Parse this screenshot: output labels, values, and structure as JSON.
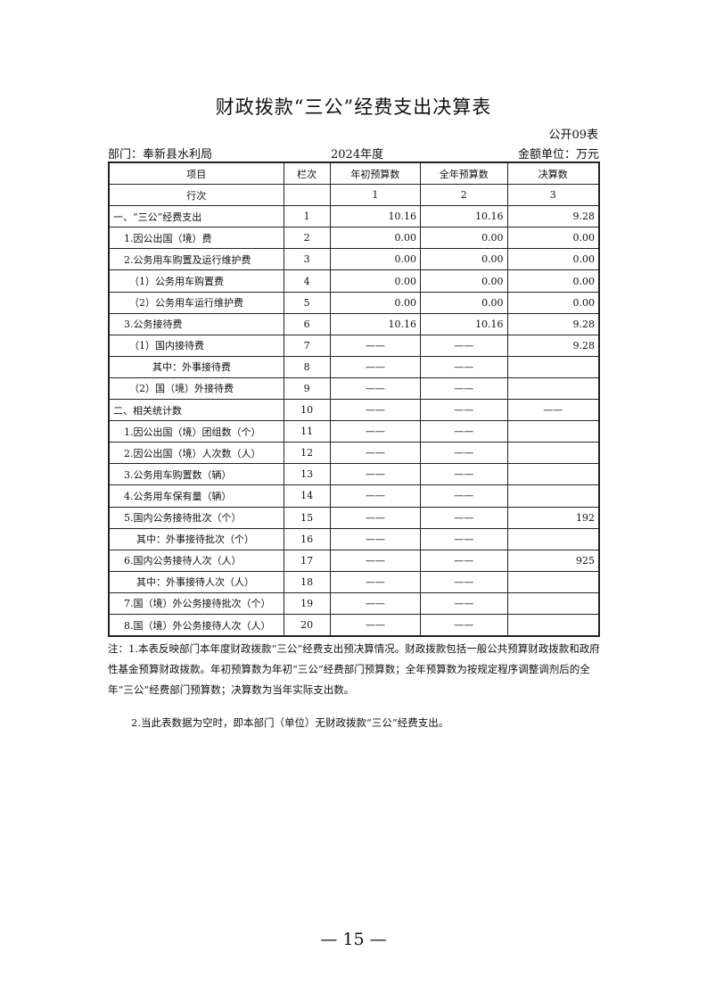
{
  "title": "财政拨款“三公”经费支出决算表",
  "table_no": "公开09表",
  "department": "部门：奉新县水利局",
  "year": "2024年度",
  "unit": "金额单位：万元",
  "headers": [
    "项目",
    "栏次",
    "年初预算数",
    "全年预算数",
    "决算数"
  ],
  "index_row": [
    "行次",
    "",
    "1",
    "2",
    "3"
  ],
  "rows": [
    [
      "一、“三公”经费支出",
      "1",
      "10.16",
      "10.16",
      "9.28"
    ],
    [
      "1.因公出国（境）费",
      "2",
      "0.00",
      "0.00",
      "0.00"
    ],
    [
      "2.公务用车购置及运行维护费",
      "3",
      "0.00",
      "0.00",
      "0.00"
    ],
    [
      "（1）公务用车购置费",
      "4",
      "0.00",
      "0.00",
      "0.00"
    ],
    [
      "（2）公务用车运行维护费",
      "5",
      "0.00",
      "0.00",
      "0.00"
    ],
    [
      "3.公务接待费",
      "6",
      "10.16",
      "10.16",
      "9.28"
    ],
    [
      "（1）国内接待费",
      "7",
      "——",
      "——",
      "9.28"
    ],
    [
      "其中：外事接待费",
      "8",
      "——",
      "——",
      ""
    ],
    [
      "（2）国（境）外接待费",
      "9",
      "——",
      "——",
      ""
    ],
    [
      "二、相关统计数",
      "10",
      "——",
      "——",
      "——"
    ],
    [
      "1.因公出国（境）团组数（个）",
      "11",
      "——",
      "——",
      ""
    ],
    [
      "2.因公出国（境）人次数（人）",
      "12",
      "——",
      "——",
      ""
    ],
    [
      "3.公务用车购置数（辆）",
      "13",
      "——",
      "——",
      ""
    ],
    [
      "4.公务用车保有量（辆）",
      "14",
      "——",
      "——",
      ""
    ],
    [
      "5.国内公务接待批次（个）",
      "15",
      "——",
      "——",
      "192"
    ],
    [
      "其中：外事接待批次（个）",
      "16",
      "——",
      "——",
      ""
    ],
    [
      "6.国内公务接待人次（人）",
      "17",
      "——",
      "——",
      "925"
    ],
    [
      "其中：外事接待人次（人）",
      "18",
      "——",
      "——",
      ""
    ],
    [
      "7.国（境）外公务接待批次（个）",
      "19",
      "——",
      "——",
      ""
    ],
    [
      "8.国（境）外公务接待人次（人）",
      "20",
      "——",
      "——",
      ""
    ]
  ],
  "notes": [
    "注：1.本表反映部门本年度财政拨款“三公”经费支出预决算情况。财政拨款包括一般公共预算财政拨款和政府性基金预算财政拨款。年初预算数为年初“三公”经费部门预算数；全年预算数为按规定程序调整调剂后的全年“三公”经费部门预算数；决算数为当年实际支出数。",
    "2.当此表数据为空时，即本部门（单位）无财政拨款“三公”经费支出。"
  ],
  "page_number": "— 15 —"
}
